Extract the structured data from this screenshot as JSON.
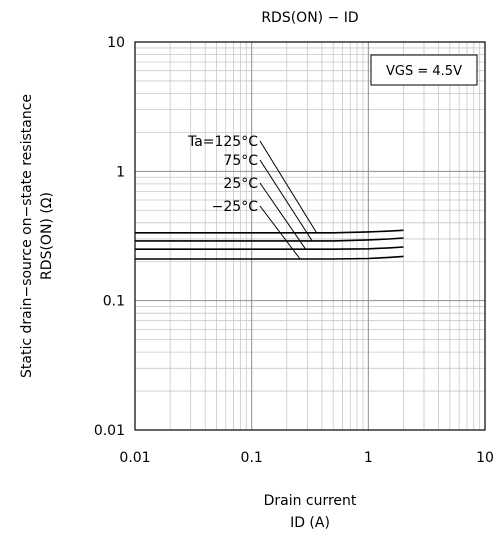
{
  "chart_data": {
    "type": "line",
    "title": "RDS(ON) − ID",
    "xlabel_line1": "Drain current",
    "xlabel_line2": "ID (A)",
    "ylabel_line1": "Static drain−source on−state resistance",
    "ylabel_line2": "RDS(ON) (Ω)",
    "xscale": "log",
    "yscale": "log",
    "xlim": [
      0.01,
      10
    ],
    "ylim": [
      0.01,
      10
    ],
    "x_ticks": [
      {
        "value": 0.01,
        "label": "0.01"
      },
      {
        "value": 0.1,
        "label": "0.1"
      },
      {
        "value": 1,
        "label": "1"
      },
      {
        "value": 10,
        "label": "10"
      }
    ],
    "y_ticks": [
      {
        "value": 0.01,
        "label": "0.01"
      },
      {
        "value": 0.1,
        "label": "0.1"
      },
      {
        "value": 1,
        "label": "1"
      },
      {
        "value": 10,
        "label": "10"
      }
    ],
    "grid": true,
    "condition_box": "VGS = 4.5V",
    "series": [
      {
        "name": "Ta=125°C",
        "x": [
          0.01,
          0.1,
          0.5,
          1,
          1.5,
          2
        ],
        "y": [
          0.335,
          0.335,
          0.335,
          0.34,
          0.345,
          0.35
        ]
      },
      {
        "name": "75°C",
        "x": [
          0.01,
          0.1,
          0.5,
          1,
          1.5,
          2
        ],
        "y": [
          0.29,
          0.29,
          0.29,
          0.295,
          0.3,
          0.305
        ]
      },
      {
        "name": "25°C",
        "x": [
          0.01,
          0.1,
          0.5,
          1,
          1.5,
          2
        ],
        "y": [
          0.25,
          0.25,
          0.25,
          0.252,
          0.256,
          0.26
        ]
      },
      {
        "name": "−25°C",
        "x": [
          0.01,
          0.1,
          0.5,
          1,
          1.5,
          2
        ],
        "y": [
          0.21,
          0.21,
          0.21,
          0.212,
          0.216,
          0.22
        ]
      }
    ]
  }
}
